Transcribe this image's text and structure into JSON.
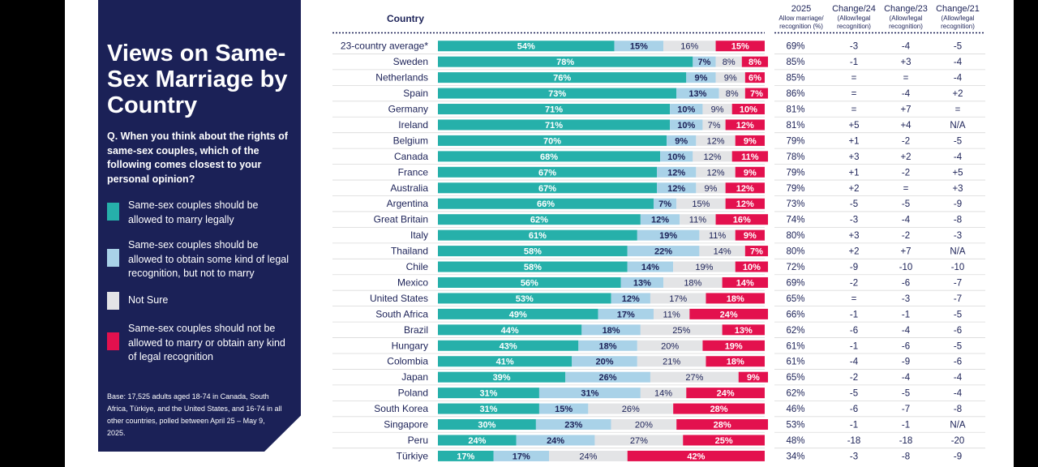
{
  "sidebar": {
    "title": "Views on Same-Sex Marriage by Country",
    "question": "Q. When you think about the rights of same-sex couples, which of the following comes closest to your personal opinion?",
    "legend": [
      {
        "label": "Same-sex couples should be allowed to marry legally",
        "color": "#26b0aa"
      },
      {
        "label": "Same-sex couples should be allowed to obtain some kind of legal recognition, but not to marry",
        "color": "#a9d2e8"
      },
      {
        "label": "Not Sure",
        "color": "#e3e4e6"
      },
      {
        "label": "Same-sex couples should not be allowed to marry or obtain any kind of legal recognition",
        "color": "#e3114e"
      }
    ],
    "base": "Base: 17,525 adults aged 18-74 in Canada, South Africa, Türkiye, and the United States, and 16-74 in all other countries, polled between April 25 – May 9, 2025."
  },
  "table": {
    "country_header": "Country",
    "col2025": {
      "main": "2025",
      "sub": "Allow marriage/ recognition (%)"
    },
    "col24": {
      "main": "Change/24",
      "sub": "(Allow/legal recognition)"
    },
    "col23": {
      "main": "Change/23",
      "sub": "(Allow/legal recognition)"
    },
    "col21": {
      "main": "Change/21",
      "sub": "(Allow/legal recognition)"
    }
  },
  "chart_data": {
    "type": "bar",
    "stacked": true,
    "orientation": "horizontal",
    "series_names": [
      "Same-sex couples should be allowed to marry legally",
      "Same-sex couples should be allowed to obtain some kind of legal recognition, but not to marry",
      "Not Sure",
      "Same-sex couples should not be allowed to marry or obtain any kind of legal recognition"
    ],
    "colors": [
      "#26b0aa",
      "#a9d2e8",
      "#e3e4e6",
      "#e3114e"
    ],
    "rows": [
      {
        "country": "23-country average*",
        "values": [
          54,
          15,
          16,
          15
        ],
        "total": "69%",
        "c24": "-3",
        "c23": "-4",
        "c21": "-5"
      },
      {
        "country": "Sweden",
        "values": [
          78,
          7,
          8,
          8
        ],
        "total": "85%",
        "c24": "-1",
        "c23": "+3",
        "c21": "-4"
      },
      {
        "country": "Netherlands",
        "values": [
          76,
          9,
          9,
          6
        ],
        "total": "85%",
        "c24": "=",
        "c23": "=",
        "c21": "-4"
      },
      {
        "country": "Spain",
        "values": [
          73,
          13,
          8,
          7
        ],
        "total": "86%",
        "c24": "=",
        "c23": "-4",
        "c21": "+2"
      },
      {
        "country": "Germany",
        "values": [
          71,
          10,
          9,
          10
        ],
        "total": "81%",
        "c24": "=",
        "c23": "+7",
        "c21": "="
      },
      {
        "country": "Ireland",
        "values": [
          71,
          10,
          7,
          12
        ],
        "total": "81%",
        "c24": "+5",
        "c23": "+4",
        "c21": "N/A"
      },
      {
        "country": "Belgium",
        "values": [
          70,
          9,
          12,
          9
        ],
        "total": "79%",
        "c24": "+1",
        "c23": "-2",
        "c21": "-5"
      },
      {
        "country": "Canada",
        "values": [
          68,
          10,
          12,
          11
        ],
        "total": "78%",
        "c24": "+3",
        "c23": "+2",
        "c21": "-4"
      },
      {
        "country": "France",
        "values": [
          67,
          12,
          12,
          9
        ],
        "total": "79%",
        "c24": "+1",
        "c23": "-2",
        "c21": "+5"
      },
      {
        "country": "Australia",
        "values": [
          67,
          12,
          9,
          12
        ],
        "total": "79%",
        "c24": "+2",
        "c23": "=",
        "c21": "+3"
      },
      {
        "country": "Argentina",
        "values": [
          66,
          7,
          15,
          12
        ],
        "total": "73%",
        "c24": "-5",
        "c23": "-5",
        "c21": "-9"
      },
      {
        "country": "Great Britain",
        "values": [
          62,
          12,
          11,
          16
        ],
        "total": "74%",
        "c24": "-3",
        "c23": "-4",
        "c21": "-8"
      },
      {
        "country": "Italy",
        "values": [
          61,
          19,
          11,
          9
        ],
        "total": "80%",
        "c24": "+3",
        "c23": "-2",
        "c21": "-3"
      },
      {
        "country": "Thailand",
        "values": [
          58,
          22,
          14,
          7
        ],
        "total": "80%",
        "c24": "+2",
        "c23": "+7",
        "c21": "N/A"
      },
      {
        "country": "Chile",
        "values": [
          58,
          14,
          19,
          10
        ],
        "total": "72%",
        "c24": "-9",
        "c23": "-10",
        "c21": "-10"
      },
      {
        "country": "Mexico",
        "values": [
          56,
          13,
          18,
          14
        ],
        "total": "69%",
        "c24": "-2",
        "c23": "-6",
        "c21": "-7"
      },
      {
        "country": "United States",
        "values": [
          53,
          12,
          17,
          18
        ],
        "total": "65%",
        "c24": "=",
        "c23": "-3",
        "c21": "-7"
      },
      {
        "country": "South Africa",
        "values": [
          49,
          17,
          11,
          24
        ],
        "total": "66%",
        "c24": "-1",
        "c23": "-1",
        "c21": "-5"
      },
      {
        "country": "Brazil",
        "values": [
          44,
          18,
          25,
          13
        ],
        "total": "62%",
        "c24": "-6",
        "c23": "-4",
        "c21": "-6"
      },
      {
        "country": "Hungary",
        "values": [
          43,
          18,
          20,
          19
        ],
        "total": "61%",
        "c24": "-1",
        "c23": "-6",
        "c21": "-5"
      },
      {
        "country": "Colombia",
        "values": [
          41,
          20,
          21,
          18
        ],
        "total": "61%",
        "c24": "-4",
        "c23": "-9",
        "c21": "-6"
      },
      {
        "country": "Japan",
        "values": [
          39,
          26,
          27,
          9
        ],
        "total": "65%",
        "c24": "-2",
        "c23": "-4",
        "c21": "-4"
      },
      {
        "country": "Poland",
        "values": [
          31,
          31,
          14,
          24
        ],
        "total": "62%",
        "c24": "-5",
        "c23": "-5",
        "c21": "-4"
      },
      {
        "country": "South Korea",
        "values": [
          31,
          15,
          26,
          28
        ],
        "total": "46%",
        "c24": "-6",
        "c23": "-7",
        "c21": "-8"
      },
      {
        "country": "Singapore",
        "values": [
          30,
          23,
          20,
          28
        ],
        "total": "53%",
        "c24": "-1",
        "c23": "-1",
        "c21": "N/A"
      },
      {
        "country": "Peru",
        "values": [
          24,
          24,
          27,
          25
        ],
        "total": "48%",
        "c24": "-18",
        "c23": "-18",
        "c21": "-20"
      },
      {
        "country": "Türkiye",
        "values": [
          17,
          17,
          24,
          42
        ],
        "total": "34%",
        "c24": "-3",
        "c23": "-8",
        "c21": "-9"
      }
    ]
  }
}
